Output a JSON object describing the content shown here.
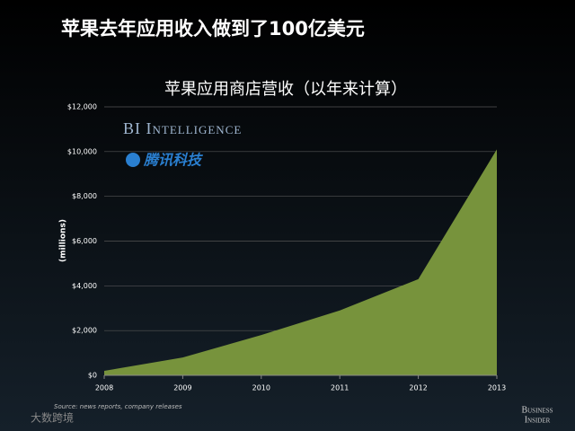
{
  "slide": {
    "headline": "苹果去年应用收入做到了100亿美元",
    "watermark": "腾讯科技",
    "site_mark": "大数跨境",
    "brand_line1": "Business",
    "brand_line2": "Insider",
    "logo": "BI Intelligence"
  },
  "chart_data": {
    "type": "area",
    "title": "苹果应用商店营收（以年来计算）",
    "y_label": "(millions)",
    "source": "Source: news reports, company releases",
    "x": [
      2008,
      2009,
      2010,
      2011,
      2012,
      2013
    ],
    "values": [
      200,
      800,
      1800,
      2900,
      4300,
      10100
    ],
    "color": "#77933c",
    "xlim": [
      2008,
      2013
    ],
    "xticks": [
      2008,
      2009,
      2010,
      2011,
      2012,
      2013
    ],
    "ylim": [
      0,
      12000
    ],
    "yticks": [
      {
        "value": 0,
        "label": "$0"
      },
      {
        "value": 2000,
        "label": "$2,000"
      },
      {
        "value": 4000,
        "label": "$4,000"
      },
      {
        "value": 6000,
        "label": "$6,000"
      },
      {
        "value": 8000,
        "label": "$8,000"
      },
      {
        "value": 10000,
        "label": "$10,000"
      },
      {
        "value": 12000,
        "label": "$12,000"
      }
    ],
    "grid": true
  }
}
